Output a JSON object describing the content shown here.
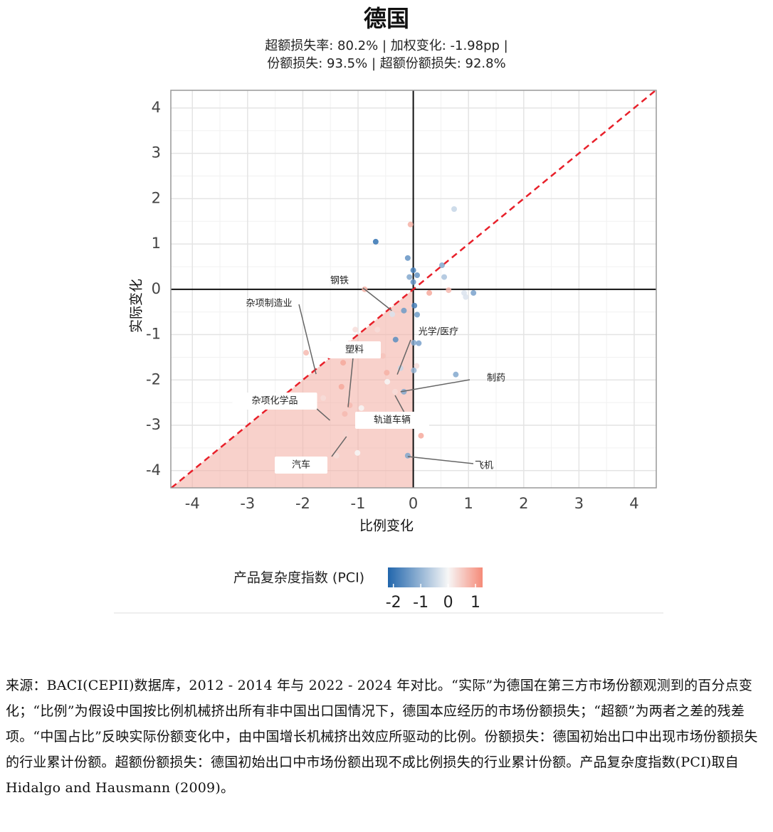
{
  "chart_data": {
    "type": "scatter",
    "title": "德国",
    "subtitle": [
      "超额损失率: 80.2% | 加权变化: -1.98pp |",
      "份额损失: 93.5% | 超额份额损失: 92.8%"
    ],
    "x_label": "比例变化",
    "y_label": "实际变化",
    "xlim": [
      -4.39,
      4.4
    ],
    "ylim": [
      -4.38,
      4.39
    ],
    "xticks": [
      -4,
      -3,
      -2,
      -1,
      0,
      1,
      2,
      3,
      4
    ],
    "yticks": [
      -4,
      -3,
      -2,
      -1,
      0,
      1,
      2,
      3,
      4
    ],
    "grid": true,
    "diagonal_color": "#e8202a",
    "shade_color": "#f4b3a8",
    "series": [
      {
        "x": [
          0.74,
          -0.05,
          -0.68,
          -0.1,
          0.52,
          0,
          0.07,
          -0.07,
          0.56,
          0,
          -0.88,
          0.29,
          0.64,
          0.92,
          1.09,
          0.95,
          0.02,
          -0.17,
          -0.38,
          0.07,
          -0.65,
          -0.32,
          0.01,
          0.1,
          -1.94,
          -0.55,
          -1.27,
          0.06,
          0.01,
          -0.48,
          -0.23,
          0.77,
          -0.47,
          -1.3,
          -0.17,
          -0.33,
          -1.63,
          -1.15,
          -0.94,
          -1.24,
          0.14,
          -1.23,
          -1.01,
          -0.1,
          -1.39,
          -1.05
        ],
        "values": [
          1.77,
          1.43,
          1.05,
          0.69,
          0.53,
          0.42,
          0.31,
          0.27,
          0.27,
          0.16,
          0,
          -0.08,
          -0.02,
          -0.08,
          -0.08,
          -0.17,
          -0.36,
          -0.47,
          -0.55,
          -0.56,
          -0.89,
          -1.11,
          -1.18,
          -1.19,
          -1.4,
          -1.47,
          -1.62,
          -1.69,
          -1.79,
          -1.84,
          -1.74,
          -1.88,
          -2.04,
          -2.15,
          -2.26,
          -2.26,
          -2.4,
          -2.56,
          -2.62,
          -2.75,
          -3.23,
          -3.18,
          -3.61,
          -3.67,
          -3.67,
          -0.89
        ],
        "pci": [
          -0.5,
          0.8,
          -2,
          -1.5,
          -1.2,
          -1.8,
          -1.5,
          -1.2,
          -0.8,
          -1.5,
          0.8,
          0.9,
          0.7,
          -0.3,
          -1.3,
          -0.3,
          -1.8,
          -1.4,
          -0.3,
          -1.4,
          0.3,
          -1.6,
          -1.2,
          -1.3,
          0.7,
          0.6,
          0.9,
          0.3,
          -1.0,
          0.8,
          -0.5,
          -1.2,
          0,
          0.9,
          -1.2,
          0.3,
          0.3,
          0.7,
          0,
          0.7,
          0.9,
          0.4,
          0,
          -1.2,
          0.3,
          0.3
        ]
      }
    ],
    "annotations": [
      {
        "label": "钢铁",
        "x": -0.39,
        "y": -0.47
      },
      {
        "label": "杂项制造业",
        "x": -1.76,
        "y": -1.87
      },
      {
        "label": "光学/医疗",
        "x": -0.29,
        "y": -1.88
      },
      {
        "label": "塑料",
        "x": -1.18,
        "y": -2.6
      },
      {
        "label": "制药",
        "x": -0.23,
        "y": -2.26
      },
      {
        "label": "杂项化学品",
        "x": -1.51,
        "y": -2.89
      },
      {
        "label": "轨道车辆",
        "x": -0.33,
        "y": -2.34
      },
      {
        "label": "汽车",
        "x": -1.21,
        "y": -3.25
      },
      {
        "label": "飞机",
        "x": -0.1,
        "y": -3.69
      }
    ],
    "colorbar": {
      "title": "产品复杂度指数 (PCI)",
      "ticks": [
        -2,
        -1,
        0,
        1
      ],
      "colorscale": [
        [
          -2.2,
          "#2166ac"
        ],
        [
          0,
          "#f7f7f7"
        ],
        [
          1.26,
          "#f58a78"
        ]
      ]
    },
    "note": "来源：BACI(CEPII)数据库，2012 - 2014 年与 2022 - 2024 年对比。“实际”为德国在第三方市场份额观测到的百分点变化；“比例”为假设中国按比例机械挤出所有非中国出口国情况下，德国本应经历的市场份额损失；“超额”为两者之差的残差项。“中国占比”反映实际份额变化中，由中国增长机械挤出效应所驱动的比例。份额损失：德国初始出口中出现市场份额损失的行业累计份额。超额份额损失：德国初始出口中市场份额出现不成比例损失的行业累计份额。产品复杂度指数(PCI)取自 Hidalgo and Hausmann (2009)。"
  }
}
